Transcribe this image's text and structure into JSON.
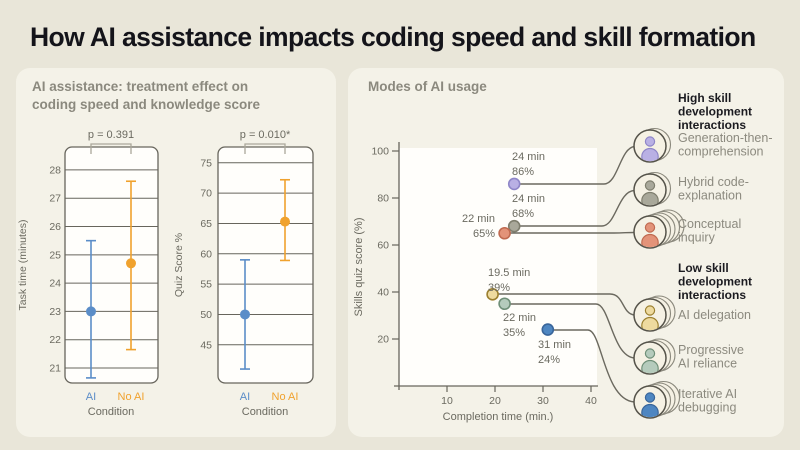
{
  "page": {
    "title": "How AI assistance impacts coding speed and skill formation"
  },
  "left_panel": {
    "header": "AI assistance: treatment effect on\ncoding speed and knowledge score"
  },
  "right_panel": {
    "header": "Modes of AI usage"
  },
  "colors": {
    "page_bg": "#e9e6d9",
    "card_bg": "#f4f2e8",
    "plot_bg": "#fffefb",
    "axis": "#67655c",
    "tick_text": "#6b6a60",
    "header_gray": "#8b897e",
    "heading_black": "#1b1b20",
    "mode_label_gray": "#8c8a7f",
    "condition_ai_blue": "#5b8dc8",
    "condition_noai_orange": "#f0a22e",
    "callout_line": "#6b695f",
    "icon_circle_fill": "#f5f1e4",
    "icon_circle_stroke": "#55534a",
    "bracket": "#aaa79a"
  },
  "chart_data": [
    {
      "id": "task_time",
      "type": "scatter",
      "subtype": "point-estimate-with-95ci",
      "p_label": "p = 0.391",
      "ylabel": "Task time (minutes)",
      "xlabel": "Condition",
      "categories": [
        "AI",
        "No AI"
      ],
      "category_colors": [
        "#5b8dc8",
        "#f0a22e"
      ],
      "yticks": [
        21,
        22,
        23,
        24,
        25,
        26,
        27,
        28
      ],
      "ylim": [
        20.47,
        28.81
      ],
      "grid": true,
      "series": [
        {
          "name": "AI",
          "mean": 23.0,
          "ci_low": 20.65,
          "ci_high": 25.5
        },
        {
          "name": "No AI",
          "mean": 24.7,
          "ci_low": 21.65,
          "ci_high": 27.6
        }
      ]
    },
    {
      "id": "quiz_score",
      "type": "scatter",
      "subtype": "point-estimate-with-95ci",
      "p_label": "p = 0.010*",
      "ylabel": "Quiz Score %",
      "xlabel": "Condition",
      "categories": [
        "AI",
        "No AI"
      ],
      "category_colors": [
        "#5b8dc8",
        "#f0a22e"
      ],
      "yticks": [
        45,
        50,
        55,
        60,
        65,
        70,
        75
      ],
      "ylim": [
        38.7,
        77.6
      ],
      "grid": true,
      "series": [
        {
          "name": "AI",
          "mean": 50.0,
          "ci_low": 41.0,
          "ci_high": 59.0
        },
        {
          "name": "No AI",
          "mean": 65.3,
          "ci_low": 58.9,
          "ci_high": 72.2
        }
      ]
    },
    {
      "id": "modes_of_ai_usage",
      "type": "scatter",
      "xlabel": "Completion time (min.)",
      "ylabel": "Skills quiz score (%)",
      "xticks": [
        10,
        20,
        30,
        40
      ],
      "yticks": [
        20,
        40,
        60,
        80,
        100
      ],
      "xlim": [
        0,
        41.5
      ],
      "ylim": [
        0,
        103
      ],
      "grid": false,
      "legend_groups": [
        {
          "id": "high",
          "title": "High skill\ndevelopment\ninteractions"
        },
        {
          "id": "low",
          "title": "Low skill\ndevelopment\ninteractions"
        }
      ],
      "points": [
        {
          "mode": "Generation-then-comprehension",
          "mode_lines": [
            "Generation-then-",
            "comprehension"
          ],
          "group": "high",
          "x": 24,
          "y": 86,
          "time_label": "24 min",
          "score_label": "86%",
          "label_pos": "above",
          "fill": "#b9b0e4",
          "stroke": "#8f86c8",
          "stack": 2
        },
        {
          "mode": "Hybrid code-explanation",
          "mode_lines": [
            "Hybrid code-",
            "explanation"
          ],
          "group": "high",
          "x": 24,
          "y": 68,
          "time_label": "24 min",
          "score_label": "68%",
          "label_pos": "above",
          "fill": "#a9a89a",
          "stroke": "#7f7e6e",
          "stack": 2
        },
        {
          "mode": "Conceptual inquiry",
          "mode_lines": [
            "Conceptual",
            "inquiry"
          ],
          "group": "high",
          "x": 22,
          "y": 65,
          "time_label": "22 min",
          "score_label": "65%",
          "label_pos": "left",
          "fill": "#e39379",
          "stroke": "#c06a50",
          "stack": 5
        },
        {
          "mode": "AI delegation",
          "mode_lines": [
            "AI delegation"
          ],
          "group": "low",
          "x": 19.5,
          "y": 39,
          "time_label": "19.5 min",
          "score_label": "39%",
          "label_pos": "above",
          "fill": "#eeda9f",
          "stroke": "#9c8030",
          "stack": 3
        },
        {
          "mode": "Progressive AI reliance",
          "mode_lines": [
            "Progressive",
            "AI reliance"
          ],
          "group": "low",
          "x": 22,
          "y": 35,
          "time_label": "22 min",
          "score_label": "35%",
          "label_pos": "below",
          "fill": "#b5cbbc",
          "stroke": "#6f8f78",
          "stack": 3
        },
        {
          "mode": "Iterative AI debugging",
          "mode_lines": [
            "Iterative AI",
            "debugging"
          ],
          "group": "low",
          "x": 31,
          "y": 24,
          "time_label": "31 min",
          "score_label": "24%",
          "label_pos": "below",
          "fill": "#4e86c1",
          "stroke": "#39659a",
          "stack": 4
        }
      ]
    }
  ]
}
